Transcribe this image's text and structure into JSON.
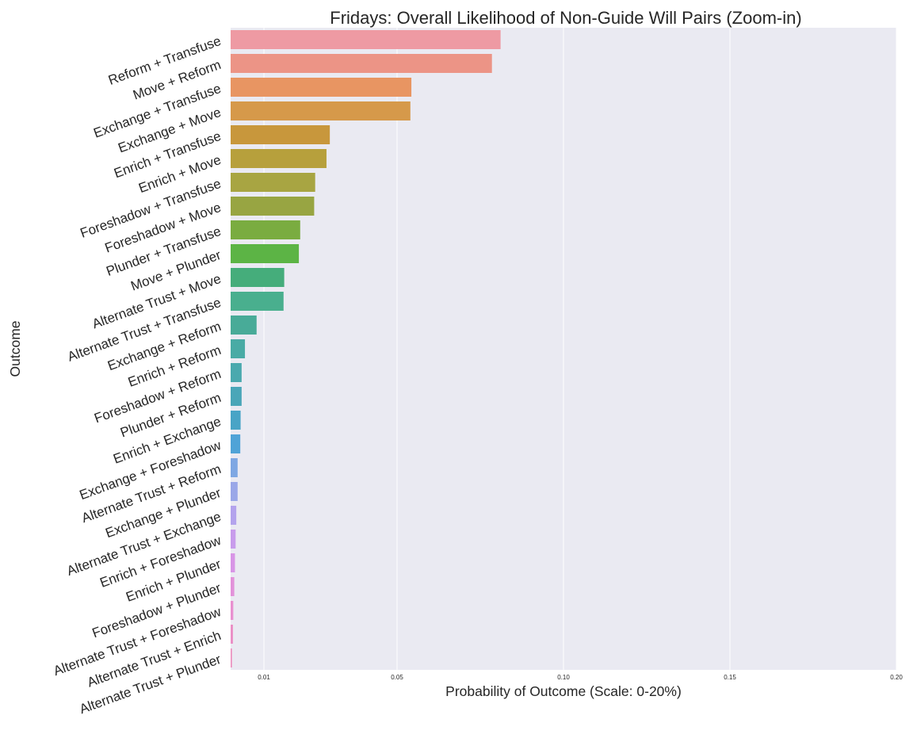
{
  "chart_data": {
    "type": "bar",
    "orientation": "horizontal",
    "title": "Fridays: Overall Likelihood of Non-Guide Will Pairs (Zoom-in)",
    "xlabel": "Probability of Outcome (Scale: 0-20%)",
    "ylabel": "Outcome",
    "xlim": [
      0,
      0.2
    ],
    "xticks": [
      0.01,
      0.05,
      0.1,
      0.15,
      0.2
    ],
    "xtick_labels": [
      "0.01",
      "0.05",
      "0.10",
      "0.15",
      "0.20"
    ],
    "grid": true,
    "categories": [
      "Reform + Transfuse",
      "Move + Reform",
      "Exchange + Transfuse",
      "Exchange + Move",
      "Enrich + Transfuse",
      "Enrich + Move",
      "Foreshadow + Transfuse",
      "Foreshadow + Move",
      "Plunder + Transfuse",
      "Move + Plunder",
      "Alternate Trust + Move",
      "Alternate Trust + Transfuse",
      "Exchange + Reform",
      "Enrich + Reform",
      "Foreshadow + Reform",
      "Plunder + Reform",
      "Enrich + Exchange",
      "Exchange + Foreshadow",
      "Alternate Trust + Reform",
      "Exchange + Plunder",
      "Alternate Trust + Exchange",
      "Enrich + Foreshadow",
      "Enrich + Plunder",
      "Foreshadow + Plunder",
      "Alternate Trust + Foreshadow",
      "Alternate Trust + Enrich",
      "Alternate Trust + Plunder"
    ],
    "values": [
      0.0811,
      0.0785,
      0.0543,
      0.054,
      0.0298,
      0.0288,
      0.0254,
      0.0251,
      0.0209,
      0.0205,
      0.0161,
      0.0159,
      0.0078,
      0.0043,
      0.0033,
      0.0033,
      0.003,
      0.0029,
      0.0021,
      0.0021,
      0.0017,
      0.0015,
      0.0013,
      0.0011,
      0.0008,
      0.0007,
      0.0004
    ],
    "colors": [
      "#ee9aa3",
      "#ec9486",
      "#e89562",
      "#d6994a",
      "#c8973c",
      "#b7a03c",
      "#a8a542",
      "#98a542",
      "#7aac40",
      "#5cb445",
      "#45ad7b",
      "#49af8e",
      "#48ab98",
      "#49aba5",
      "#4aa9ae",
      "#4aa6b8",
      "#49a4c6",
      "#4fa3d7",
      "#7ea7e3",
      "#9aa7e8",
      "#b3a3ed",
      "#c89cec",
      "#d895e6",
      "#e292da",
      "#e890d0",
      "#ea8fc6",
      "#ec8fbe"
    ],
    "background": "#eaeaf2"
  }
}
